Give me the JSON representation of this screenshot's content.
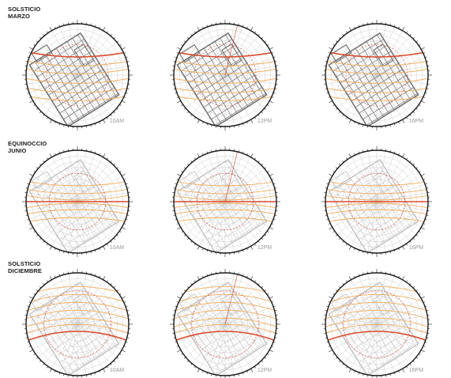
{
  "rows": [
    {
      "label_lines": [
        "SOLSTICIO",
        "MARZO"
      ],
      "times": [
        "10AM",
        "12PM",
        "16PM"
      ],
      "sun_path": "high",
      "plan": "dark"
    },
    {
      "label_lines": [
        "EQUINOCCIO",
        "JUNIO"
      ],
      "times": [
        "10AM",
        "12PM",
        "16PM"
      ],
      "sun_path": "middle",
      "plan": "light"
    },
    {
      "label_lines": [
        "SOLSTICIO",
        "DICIEMBRE"
      ],
      "times": [
        "10AM",
        "12PM",
        "16PM"
      ],
      "sun_path": "low",
      "plan": "light"
    }
  ],
  "colors": {
    "ring": "#1b1b1b",
    "grid": "#c8c8c8",
    "sun_main": "#d94a2b",
    "sun_secondary": "#f2ad5c",
    "sun_dashed": "#d9534f",
    "plan_dark": "#6f6f6f",
    "plan_light": "#b5b5b5"
  },
  "icons": {
    "diagram": "sun-path-stereographic-diagram"
  }
}
